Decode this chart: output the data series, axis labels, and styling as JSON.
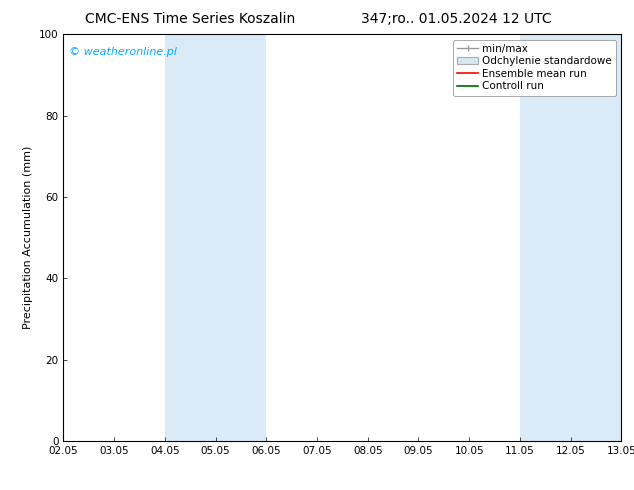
{
  "title_left": "CMC-ENS Time Series Koszalin",
  "title_right": "347;ro.. 01.05.2024 12 UTC",
  "ylabel": "Precipitation Accumulation (mm)",
  "watermark": "© weatheronline.pl",
  "watermark_color": "#00aaff",
  "ylim": [
    0,
    100
  ],
  "yticks": [
    0,
    20,
    40,
    60,
    80,
    100
  ],
  "x_tick_labels": [
    "02.05",
    "03.05",
    "04.05",
    "05.05",
    "06.05",
    "07.05",
    "08.05",
    "09.05",
    "10.05",
    "11.05",
    "12.05",
    "13.05"
  ],
  "x_tick_positions": [
    0,
    1,
    2,
    3,
    4,
    5,
    6,
    7,
    8,
    9,
    10,
    11
  ],
  "shaded_regions": [
    {
      "x_start": 2,
      "x_end": 4,
      "color": "#daeaf7"
    },
    {
      "x_start": 9,
      "x_end": 11,
      "color": "#daeaf7"
    }
  ],
  "background_color": "#ffffff",
  "plot_bg_color": "#ffffff",
  "title_fontsize": 10,
  "ylabel_fontsize": 8,
  "tick_fontsize": 7.5,
  "legend_fontsize": 7.5,
  "watermark_fontsize": 8
}
